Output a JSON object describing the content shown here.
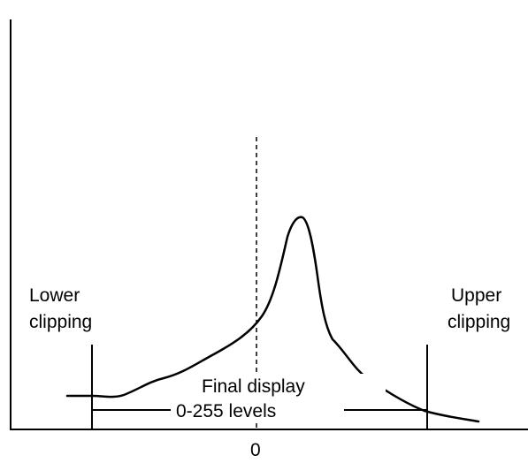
{
  "labels": {
    "lower_line1": "Lower",
    "lower_line2": "clipping",
    "upper_line1": "Upper",
    "upper_line2": "clipping",
    "final_line1": "Final display",
    "final_line2": "0-255 levels",
    "zero": "0"
  },
  "colors": {
    "ink": "#000000",
    "background": "#ffffff"
  }
}
